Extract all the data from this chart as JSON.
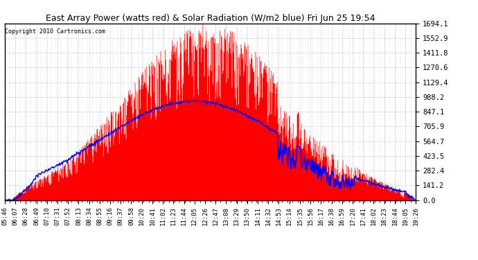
{
  "title": "East Array Power (watts red) & Solar Radiation (W/m2 blue) Fri Jun 25 19:54",
  "copyright": "Copyright 2010 Cartronics.com",
  "y_max": 1694.1,
  "y_ticks": [
    0.0,
    141.2,
    282.4,
    423.5,
    564.7,
    705.9,
    847.1,
    988.2,
    1129.4,
    1270.6,
    1411.8,
    1552.9,
    1694.1
  ],
  "x_labels": [
    "05:46",
    "06:07",
    "06:28",
    "06:49",
    "07:10",
    "07:31",
    "07:52",
    "08:13",
    "08:34",
    "08:55",
    "09:16",
    "09:37",
    "09:58",
    "10:20",
    "10:41",
    "11:02",
    "11:23",
    "11:44",
    "12:05",
    "12:26",
    "12:47",
    "13:08",
    "13:29",
    "13:50",
    "14:11",
    "14:32",
    "14:53",
    "15:14",
    "15:35",
    "15:56",
    "16:17",
    "16:38",
    "16:59",
    "17:20",
    "17:41",
    "18:02",
    "18:23",
    "18:44",
    "19:05",
    "19:26"
  ],
  "bg_color": "#ffffff",
  "plot_bg_color": "#ffffff",
  "grid_color": "#cccccc",
  "fill_color": "#ff0000",
  "line_color": "#0000ff",
  "border_color": "#000000",
  "peak_power": 1694.1,
  "peak_solar": 950.0
}
